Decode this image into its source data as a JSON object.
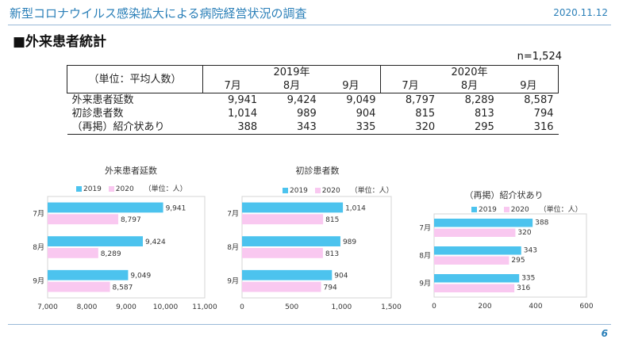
{
  "header": {
    "title": "新型コロナウイルス感染拡大による病院経営状況の調査",
    "date": "2020.11.12"
  },
  "section_title": "■外来患者統計",
  "n_note": "n=1,524",
  "table": {
    "unit_label": "（単位：平均人数）",
    "years": [
      "2019年",
      "2020年"
    ],
    "months": [
      "7月",
      "8月",
      "9月",
      "7月",
      "8月",
      "9月"
    ],
    "rows": [
      {
        "label": "外来患者延数",
        "values": [
          "9,941",
          "9,424",
          "9,049",
          "8,797",
          "8,289",
          "8,587"
        ]
      },
      {
        "label": "初診患者数",
        "values": [
          "1,014",
          "989",
          "904",
          "815",
          "813",
          "794"
        ]
      },
      {
        "label": "（再掲）紹介状あり",
        "values": [
          "388",
          "343",
          "335",
          "320",
          "295",
          "316"
        ]
      }
    ]
  },
  "legend": {
    "series": [
      "2019",
      "2020"
    ],
    "unit": "（単位：人）"
  },
  "colors": {
    "s2019": "#4cc3ee",
    "s2020": "#f9c8f0",
    "accent": "#2a7fb8"
  },
  "chart_data": [
    {
      "type": "bar",
      "orientation": "horizontal",
      "title": "外来患者延数",
      "categories": [
        "7月",
        "8月",
        "9月"
      ],
      "series": [
        {
          "name": "2019",
          "values": [
            9941,
            9424,
            9049
          ]
        },
        {
          "name": "2020",
          "values": [
            8797,
            8289,
            8587
          ]
        }
      ],
      "xlim": [
        7000,
        11000
      ],
      "xticks": [
        "7,000",
        "8,000",
        "9,000",
        "10,000",
        "11,000"
      ],
      "labels2019": [
        "9,941",
        "9,424",
        "9,049"
      ],
      "labels2020": [
        "8,797",
        "8,289",
        "8,587"
      ]
    },
    {
      "type": "bar",
      "orientation": "horizontal",
      "title": "初診患者数",
      "categories": [
        "7月",
        "8月",
        "9月"
      ],
      "series": [
        {
          "name": "2019",
          "values": [
            1014,
            989,
            904
          ]
        },
        {
          "name": "2020",
          "values": [
            815,
            813,
            794
          ]
        }
      ],
      "xlim": [
        0,
        1500
      ],
      "xticks": [
        "0",
        "500",
        "1,000",
        "1,500"
      ],
      "labels2019": [
        "1,014",
        "989",
        "904"
      ],
      "labels2020": [
        "815",
        "813",
        "794"
      ]
    },
    {
      "type": "bar",
      "orientation": "horizontal",
      "title": "（再掲）紹介状あり",
      "categories": [
        "7月",
        "8月",
        "9月"
      ],
      "series": [
        {
          "name": "2019",
          "values": [
            388,
            343,
            335
          ]
        },
        {
          "name": "2020",
          "values": [
            320,
            295,
            316
          ]
        }
      ],
      "xlim": [
        0,
        600
      ],
      "xticks": [
        "0",
        "200",
        "400",
        "600"
      ],
      "labels2019": [
        "388",
        "343",
        "335"
      ],
      "labels2020": [
        "320",
        "295",
        "316"
      ]
    }
  ],
  "page_number": "6"
}
